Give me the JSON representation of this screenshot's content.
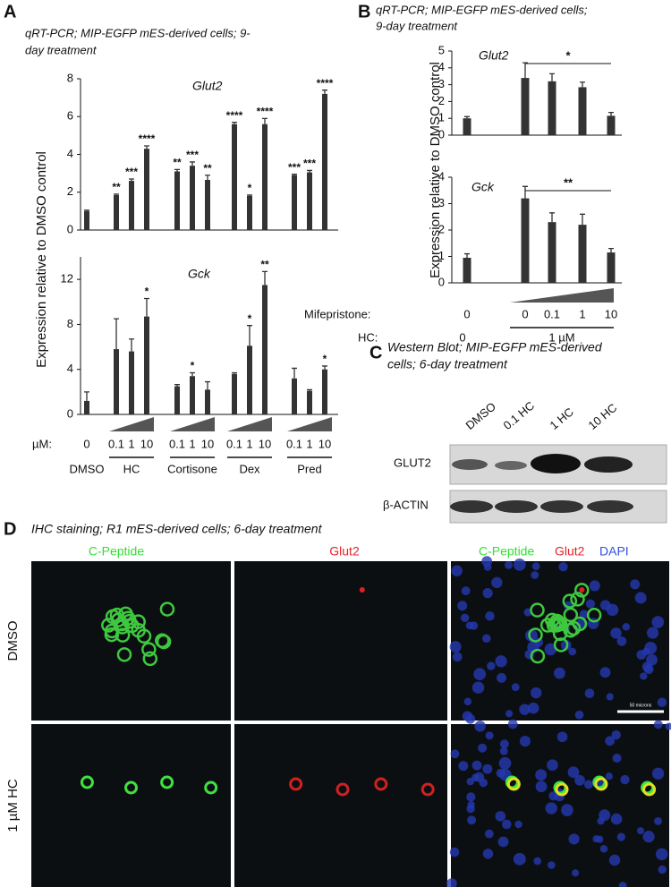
{
  "panel_a": {
    "label": "A",
    "title_lines": [
      "qRT-PCR; MIP-EGFP mES-derived cells; 9-",
      "day treatment"
    ],
    "y_label": "Expression relative to DMSO control",
    "unit_label": "µM:",
    "groups": [
      "DMSO",
      "HC",
      "Cortisone",
      "Dex",
      "Pred"
    ]
  },
  "panel_b": {
    "label": "B",
    "title_lines": [
      "qRT-PCR; MIP-EGFP mES-derived cells;",
      "9-day treatment"
    ],
    "y_label": "Expression relative to DMSO control",
    "row1_label": "Mifepristone:",
    "row2_label": "HC:",
    "row2_values": [
      "0",
      "1 µM"
    ]
  },
  "panel_c": {
    "label": "C",
    "title_lines": [
      "Western Blot; MIP-EGFP mES-derived",
      "cells; 6-day treatment"
    ],
    "lanes": [
      "DMSO",
      "0.1 HC",
      "1 HC",
      "10 HC"
    ],
    "rows": [
      "GLUT2",
      "β-ACTIN"
    ]
  },
  "panel_d": {
    "label": "D",
    "title": "IHC staining; R1 mES-derived cells; 6-day treatment",
    "columns": [
      [
        "C-Peptide"
      ],
      [
        "Glut2"
      ],
      [
        "C-Peptide",
        "Glut2",
        "DAPI"
      ]
    ],
    "rows": [
      "DMSO",
      "1 µM HC"
    ],
    "scale_bar": "50 microns"
  },
  "chart_data": [
    {
      "type": "bar",
      "title": "Glut2",
      "color": "#333333",
      "values": [
        1.0,
        1.85,
        2.6,
        4.3,
        3.1,
        3.4,
        2.65,
        5.6,
        1.8,
        5.6,
        2.9,
        3.05,
        7.2
      ],
      "errors": [
        0.05,
        0.05,
        0.1,
        0.15,
        0.1,
        0.2,
        0.25,
        0.1,
        0.05,
        0.3,
        0.05,
        0.1,
        0.2
      ],
      "significance": [
        null,
        "**",
        "***",
        "****",
        "**",
        "***",
        "**",
        "****",
        "*",
        "****",
        "***",
        "***",
        "****"
      ],
      "ylim": [
        0,
        8
      ],
      "yticks": [
        0,
        2,
        4,
        6,
        8
      ]
    },
    {
      "type": "bar",
      "title": "Gck",
      "color": "#333333",
      "categories": [
        "0",
        "0.1",
        "1",
        "10",
        "0.1",
        "1",
        "10",
        "0.1",
        "1",
        "10",
        "0.1",
        "1",
        "10"
      ],
      "values": [
        1.2,
        5.8,
        5.6,
        8.7,
        2.5,
        3.4,
        2.2,
        3.6,
        6.1,
        11.5,
        3.2,
        2.1,
        4.0
      ],
      "errors": [
        0.8,
        2.7,
        1.1,
        1.6,
        0.15,
        0.3,
        0.7,
        0.1,
        1.8,
        1.2,
        0.9,
        0.1,
        0.3
      ],
      "significance": [
        null,
        null,
        null,
        "*",
        null,
        "*",
        null,
        null,
        "*",
        "**",
        null,
        null,
        "*"
      ],
      "ylim": [
        0,
        14
      ],
      "yticks": [
        0,
        4,
        8,
        12
      ]
    },
    {
      "type": "bar",
      "title": "Glut2",
      "color": "#333333",
      "values": [
        1.0,
        3.4,
        3.2,
        2.85,
        1.15
      ],
      "errors": [
        0.1,
        0.9,
        0.45,
        0.3,
        0.2
      ],
      "significance": "*",
      "ylim": [
        0,
        5
      ],
      "yticks": [
        0,
        1,
        2,
        3,
        4,
        5
      ]
    },
    {
      "type": "bar",
      "title": "Gck",
      "color": "#333333",
      "categories": [
        "0",
        "0",
        "0.1",
        "1",
        "10"
      ],
      "values": [
        0.95,
        3.2,
        2.3,
        2.2,
        1.15
      ],
      "errors": [
        0.15,
        0.45,
        0.35,
        0.4,
        0.15
      ],
      "significance": "**",
      "ylim": [
        0,
        4
      ],
      "yticks": [
        0,
        1,
        2,
        3,
        4
      ]
    }
  ]
}
